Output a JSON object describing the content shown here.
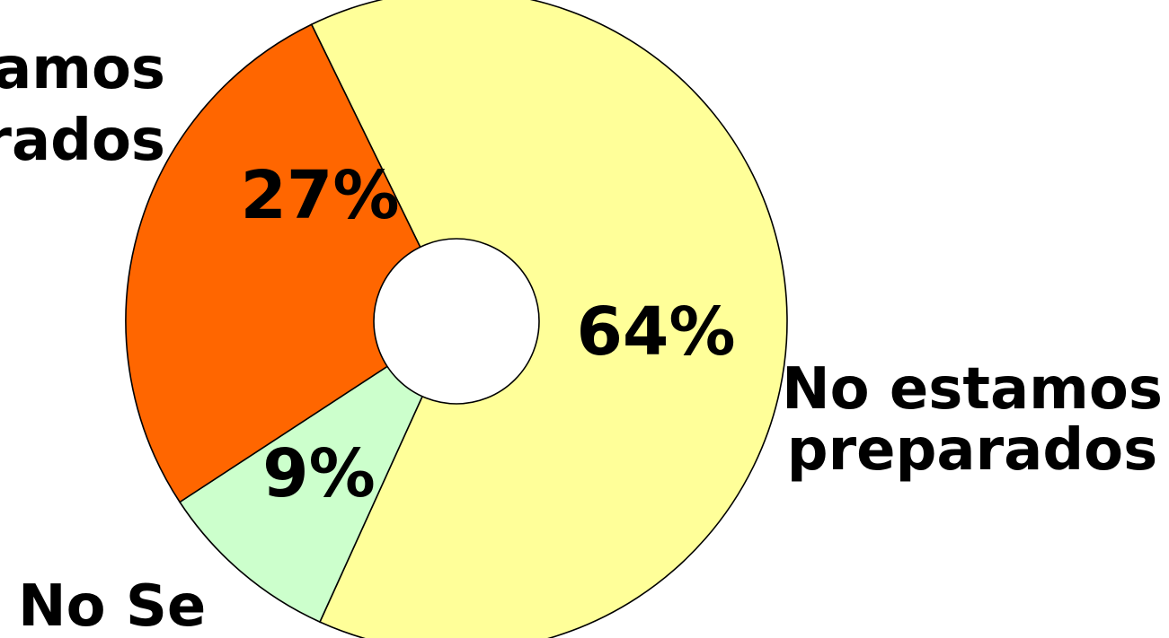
{
  "chart_data": {
    "type": "pie",
    "donut": true,
    "slices": [
      {
        "label_lines": [
          "No estamos",
          "preparados"
        ],
        "value": 64,
        "value_label": "64%",
        "color": "#FFFF99"
      },
      {
        "label_lines": [
          "No Se"
        ],
        "value": 9,
        "value_label": "9%",
        "color": "#CCFFCC"
      },
      {
        "label_lines": [
          "estamos",
          "preparados"
        ],
        "value": 27,
        "value_label": "27%",
        "color": "#FF6600"
      }
    ],
    "legend": "none"
  }
}
